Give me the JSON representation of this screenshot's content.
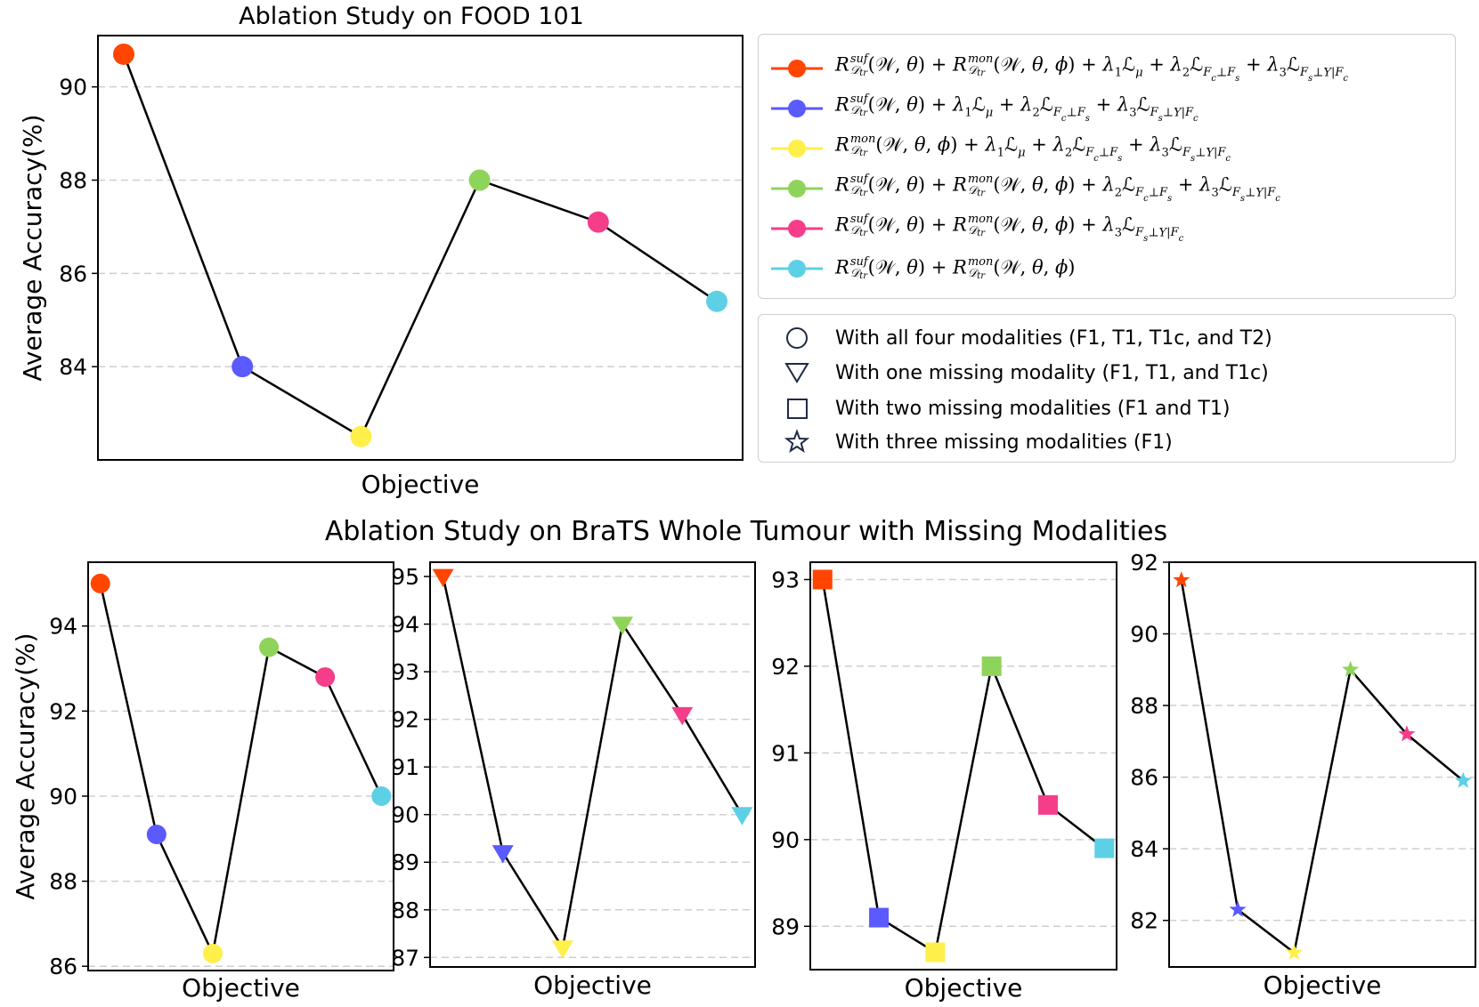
{
  "colors": [
    "#ff4500",
    "#5a5aff",
    "#ffef4a",
    "#8fd45a",
    "#f53d8a",
    "#5ed0e6"
  ],
  "legend_math": [
    {
      "terms": "R_suf_mon_l1_l2_l3",
      "text": "R^suf_Dtr(W,θ) + R^mon_Dtr(W,θ,φ) + λ1Lμ + λ2L_Fc⊥Fs + λ3L_Fs⊥Y|Fc"
    },
    {
      "terms": "R_suf_l1_l2_l3",
      "text": "R^suf_Dtr(W,θ) + λ1Lμ + λ2L_Fc⊥Fs + λ3L_Fs⊥Y|Fc"
    },
    {
      "terms": "R_mon_l1_l2_l3",
      "text": "R^mon_Dtr(W,θ,φ) + λ1Lμ + λ2L_Fc⊥Fs + λ3L_Fs⊥Y|Fc"
    },
    {
      "terms": "R_suf_mon_l2_l3",
      "text": "R^suf_Dtr(W,θ) + R^mon_Dtr(W,θ,φ) + λ2L_Fc⊥Fs + λ3L_Fs⊥Y|Fc"
    },
    {
      "terms": "R_suf_mon_l3",
      "text": "R^suf_Dtr(W,θ) + R^mon_Dtr(W,θ,φ) + λ3L_Fs⊥Y|Fc"
    },
    {
      "terms": "R_suf_mon",
      "text": "R^suf_Dtr(W,θ) + R^mon_Dtr(W,θ,φ)"
    }
  ],
  "marker_legend": [
    {
      "marker": "circle",
      "label": "With all four modalities (F1, T1, T1c, and T2)"
    },
    {
      "marker": "triangle",
      "label": "With one missing modality (F1, T1, and T1c)"
    },
    {
      "marker": "square",
      "label": "With two missing modalities (F1 and T1)"
    },
    {
      "marker": "star",
      "label": "With three missing modalities (F1)"
    }
  ],
  "section_title": "Ablation Study on BraTS Whole Tumour with Missing Modalities",
  "chart_data": [
    {
      "type": "line",
      "id": "food",
      "title": "Ablation Study on FOOD 101",
      "xlabel": "Objective",
      "ylabel": "Average Accuracy(%)",
      "marker": "circle",
      "values": [
        90.7,
        84.0,
        82.5,
        88.0,
        87.1,
        85.4
      ],
      "ylim": [
        82.0,
        91.1
      ],
      "yticks": [
        84,
        86,
        88,
        90
      ],
      "grid": true
    },
    {
      "type": "line",
      "id": "brats_all",
      "title": "",
      "xlabel": "Objective",
      "ylabel": "Average Accuracy(%)",
      "marker": "circle",
      "values": [
        95.0,
        89.1,
        86.3,
        93.5,
        92.8,
        90.0
      ],
      "ylim": [
        85.9,
        95.5
      ],
      "yticks": [
        86,
        88,
        90,
        92,
        94
      ],
      "grid": true
    },
    {
      "type": "line",
      "id": "brats_one_missing",
      "title": "",
      "xlabel": "Objective",
      "ylabel": "",
      "marker": "triangle",
      "values": [
        95.0,
        89.2,
        87.2,
        94.0,
        92.1,
        90.0
      ],
      "ylim": [
        86.8,
        95.3
      ],
      "yticks": [
        87,
        88,
        89,
        90,
        91,
        92,
        93,
        94,
        95
      ],
      "grid": true
    },
    {
      "type": "line",
      "id": "brats_two_missing",
      "title": "",
      "xlabel": "Objective",
      "ylabel": "",
      "marker": "square",
      "values": [
        93.0,
        89.1,
        88.7,
        92.0,
        90.4,
        89.9
      ],
      "ylim": [
        88.5,
        93.2
      ],
      "yticks": [
        89,
        90,
        91,
        92,
        93
      ],
      "grid": true
    },
    {
      "type": "line",
      "id": "brats_three_missing",
      "title": "",
      "xlabel": "Objective",
      "ylabel": "",
      "marker": "star",
      "values": [
        91.5,
        82.3,
        81.1,
        89.0,
        87.2,
        85.9
      ],
      "ylim": [
        80.7,
        92.0
      ],
      "yticks": [
        82,
        84,
        86,
        88,
        90,
        92
      ],
      "grid": true
    }
  ]
}
